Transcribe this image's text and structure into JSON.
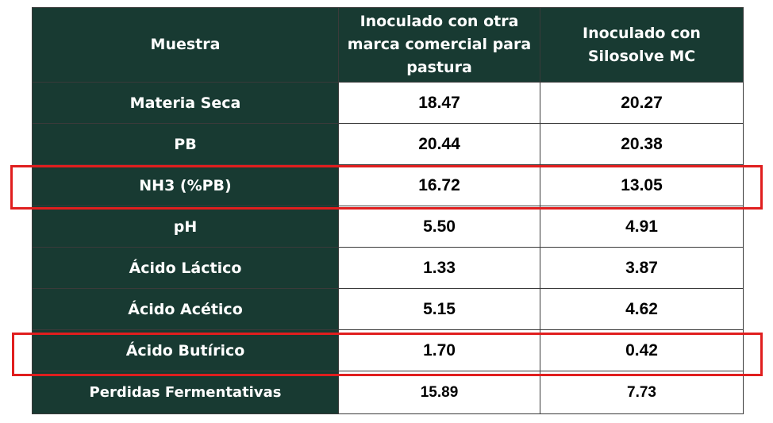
{
  "table": {
    "headers": [
      "Muestra",
      "Inoculado con otra marca comercial para pastura",
      "Inoculado con Silosolve MC"
    ],
    "rows": [
      {
        "label": "Materia Seca",
        "otra": "18.47",
        "silosolve": "20.27"
      },
      {
        "label": "PB",
        "otra": "20.44",
        "silosolve": "20.38"
      },
      {
        "label": "NH3 (%PB)",
        "otra": "16.72",
        "silosolve": "13.05"
      },
      {
        "label": "pH",
        "otra": "5.50",
        "silosolve": "4.91"
      },
      {
        "label": "Ácido Láctico",
        "otra": "1.33",
        "silosolve": "3.87"
      },
      {
        "label": "Ácido Acético",
        "otra": "5.15",
        "silosolve": "4.62"
      },
      {
        "label": "Ácido Butírico",
        "otra": "1.70",
        "silosolve": "0.42"
      },
      {
        "label": "Perdidas Fermentativas",
        "otra": "15.89",
        "silosolve": "7.73"
      }
    ]
  },
  "highlights": {
    "rows": [
      "NH3 (%PB)",
      "Ácido Butírico"
    ],
    "color": "#e01e1e"
  },
  "colors": {
    "header_bg": "#183a32",
    "header_text": "#ffffff",
    "cell_bg": "#ffffff",
    "cell_text": "#000000"
  }
}
